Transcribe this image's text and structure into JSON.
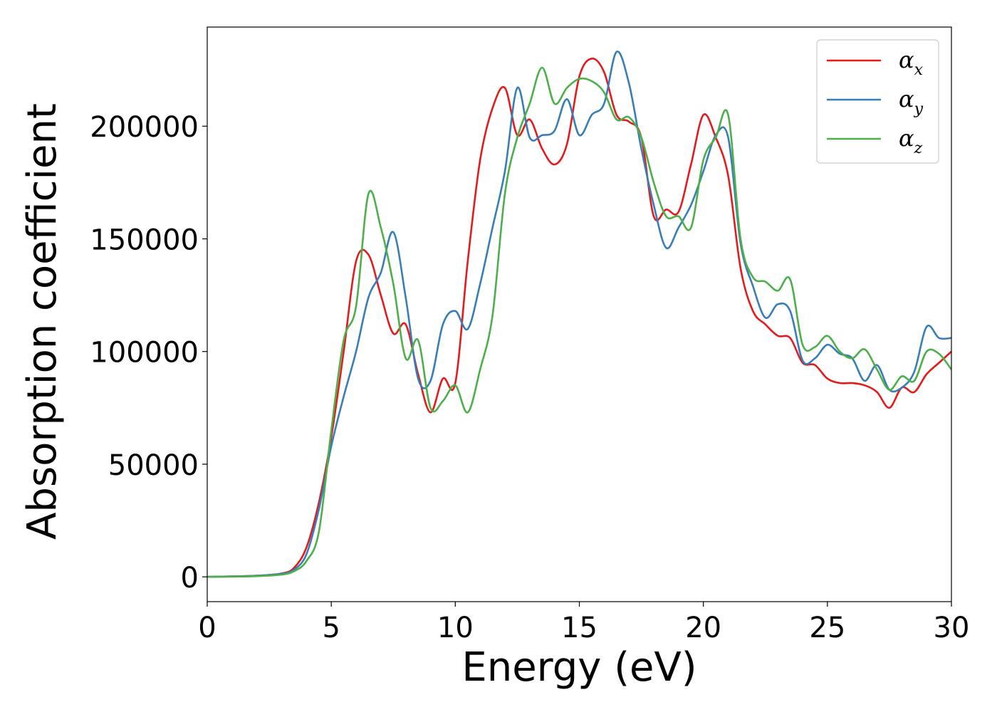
{
  "chart_data": {
    "type": "line",
    "xlabel": "Energy (eV)",
    "ylabel": "Absorption coefficient",
    "xlim": [
      0,
      30
    ],
    "ylim": [
      -11000,
      244000
    ],
    "xticks": [
      0,
      5,
      10,
      15,
      20,
      25,
      30
    ],
    "xtick_labels": [
      "0",
      "5",
      "10",
      "15",
      "20",
      "25",
      "30"
    ],
    "yticks": [
      0,
      50000,
      100000,
      150000,
      200000
    ],
    "ytick_labels": [
      "0",
      "50000",
      "100000",
      "150000",
      "200000"
    ],
    "grid": false,
    "legend_position": "top-right",
    "x": [
      0,
      1,
      2,
      3,
      3.5,
      4,
      4.5,
      5,
      5.5,
      6,
      6.5,
      7,
      7.5,
      8,
      8.5,
      9,
      9.5,
      10,
      10.5,
      11,
      11.5,
      12,
      12.5,
      13,
      13.5,
      14,
      14.5,
      15,
      15.5,
      16,
      16.5,
      17,
      17.5,
      18,
      18.5,
      19,
      19.5,
      20,
      20.5,
      21,
      21.5,
      22,
      22.5,
      23,
      23.5,
      24,
      24.5,
      25,
      25.5,
      26,
      26.5,
      27,
      27.5,
      28,
      28.5,
      29,
      29.5,
      30
    ],
    "series": [
      {
        "name": "α",
        "subscript": "x",
        "color": "#e41a1c",
        "values": [
          0,
          200,
          500,
          1500,
          4000,
          13000,
          33000,
          62000,
          100000,
          140000,
          143000,
          125000,
          108000,
          112000,
          90000,
          73000,
          88000,
          86000,
          140000,
          185000,
          208000,
          217000,
          196000,
          203000,
          190000,
          183000,
          192000,
          222000,
          230000,
          224000,
          205000,
          202000,
          195000,
          160000,
          163000,
          162000,
          183000,
          205000,
          195000,
          178000,
          137000,
          118000,
          112000,
          107000,
          106000,
          95000,
          94000,
          88000,
          86000,
          86000,
          85000,
          82000,
          75000,
          84000,
          82000,
          90000,
          95000,
          100000
        ]
      },
      {
        "name": "α",
        "subscript": "y",
        "color": "#377eb8",
        "values": [
          0,
          200,
          500,
          1400,
          3200,
          10000,
          30000,
          58000,
          80000,
          100000,
          124000,
          135000,
          153000,
          124000,
          88000,
          87000,
          112000,
          118000,
          110000,
          130000,
          155000,
          180000,
          217000,
          195000,
          196000,
          198000,
          212000,
          196000,
          205000,
          210000,
          233000,
          219000,
          190000,
          165000,
          146000,
          155000,
          165000,
          180000,
          196000,
          195000,
          148000,
          129000,
          115000,
          121000,
          118000,
          96000,
          97000,
          103000,
          99000,
          97000,
          87000,
          94000,
          83000,
          84000,
          91000,
          111000,
          106000,
          106000
        ]
      },
      {
        "name": "α",
        "subscript": "z",
        "color": "#4daf4a",
        "values": [
          0,
          100,
          300,
          1000,
          2500,
          7000,
          20000,
          65000,
          105000,
          120000,
          170000,
          155000,
          130000,
          97000,
          105000,
          75000,
          78000,
          85000,
          73000,
          92000,
          116000,
          170000,
          195000,
          210000,
          226000,
          210000,
          217000,
          221000,
          220000,
          215000,
          203000,
          204000,
          195000,
          175000,
          160000,
          160000,
          155000,
          185000,
          195000,
          205000,
          150000,
          133000,
          131000,
          127000,
          132000,
          103000,
          102000,
          107000,
          100000,
          97000,
          101000,
          92000,
          83000,
          89000,
          87000,
          100000,
          99000,
          92000
        ]
      }
    ]
  }
}
